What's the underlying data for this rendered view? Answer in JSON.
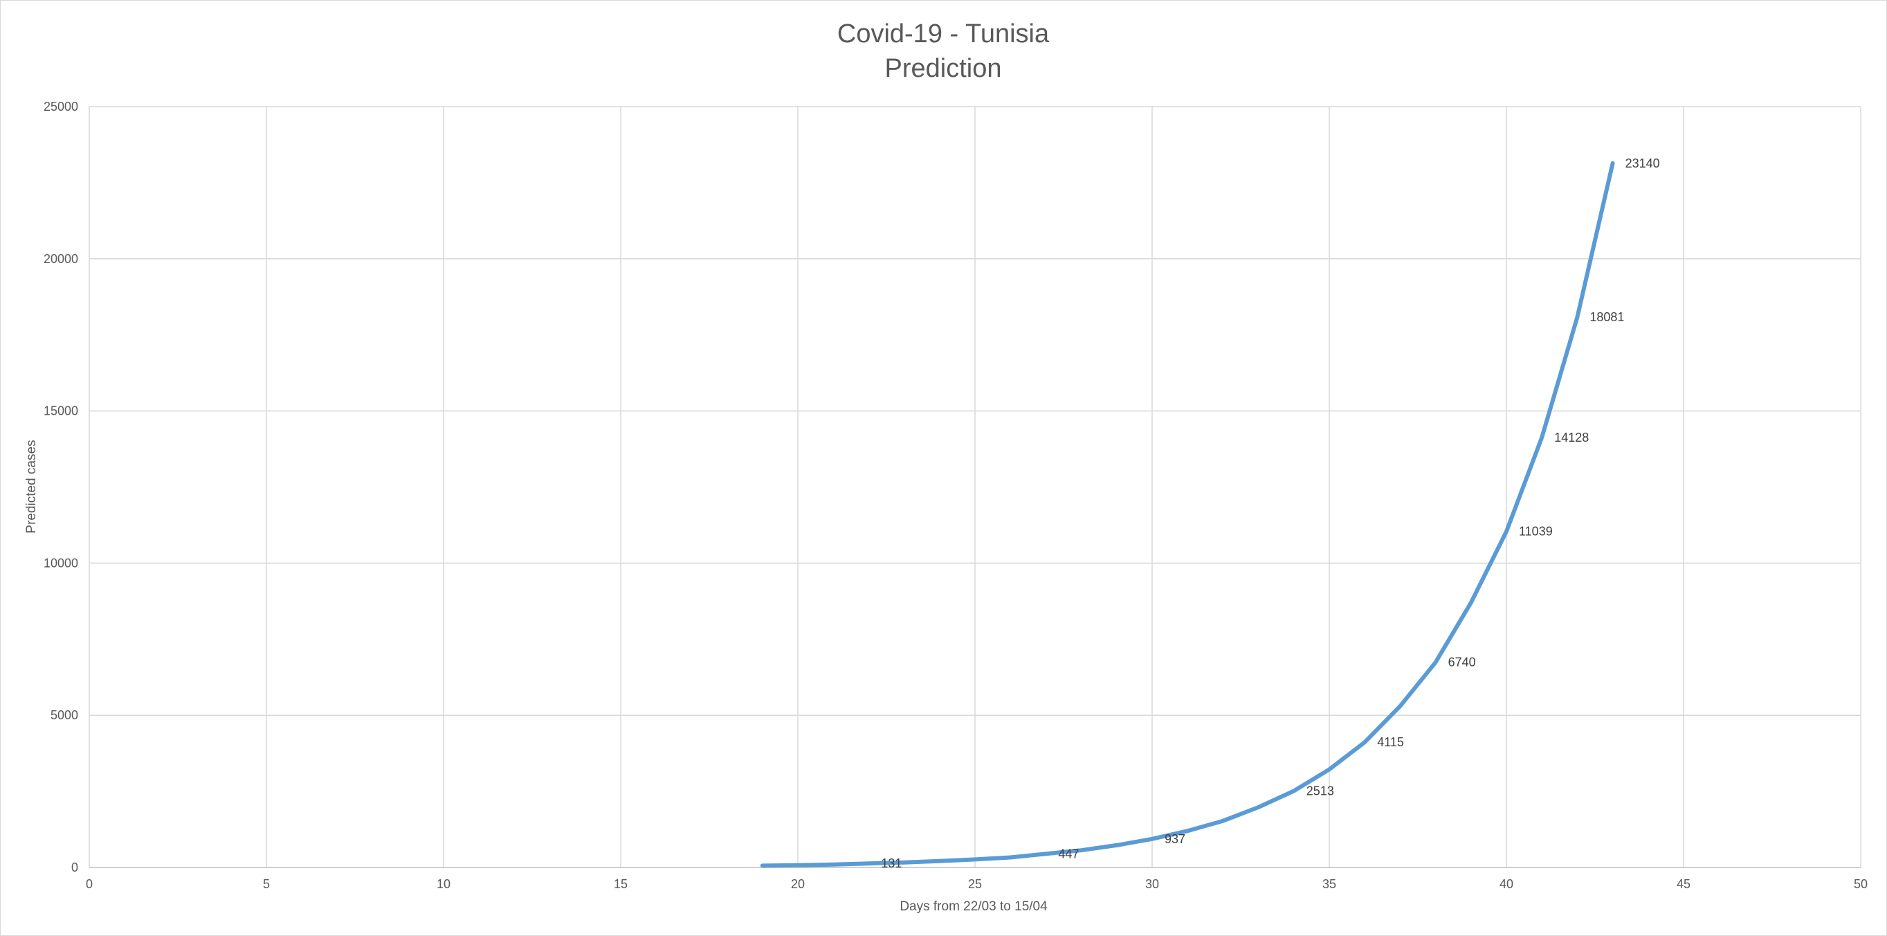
{
  "chart_data": {
    "type": "line",
    "title": "Covid-19 - Tunisia",
    "subtitle": "Prediction",
    "xlabel": "Days from 22/03 to 15/04",
    "ylabel": "Predicted cases",
    "xlim": [
      0,
      50
    ],
    "ylim": [
      0,
      25000
    ],
    "x_ticks": [
      0,
      5,
      10,
      15,
      20,
      25,
      30,
      35,
      40,
      45,
      50
    ],
    "y_ticks": [
      0,
      5000,
      10000,
      15000,
      20000,
      25000
    ],
    "grid": true,
    "legend": "none",
    "series": [
      {
        "color": "#5b9bd5",
        "x": [
          19,
          20,
          21,
          22,
          23,
          24,
          25,
          26,
          27,
          28,
          29,
          30,
          31,
          32,
          33,
          34,
          35,
          36,
          37,
          38,
          39,
          40,
          41,
          42,
          43
        ],
        "y": [
          60,
          75,
          95,
          131,
          165,
          210,
          265,
          330,
          447,
          565,
          730,
          937,
          1200,
          1530,
          1980,
          2513,
          3220,
          4115,
          5300,
          6740,
          8700,
          11039,
          14128,
          18081,
          23140
        ]
      }
    ],
    "data_labels": [
      {
        "x": 22,
        "y": 131,
        "text": "131"
      },
      {
        "x": 27,
        "y": 447,
        "text": "447"
      },
      {
        "x": 30,
        "y": 937,
        "text": "937"
      },
      {
        "x": 34,
        "y": 2513,
        "text": "2513"
      },
      {
        "x": 36,
        "y": 4115,
        "text": "4115"
      },
      {
        "x": 38,
        "y": 6740,
        "text": "6740"
      },
      {
        "x": 40,
        "y": 11039,
        "text": "11039"
      },
      {
        "x": 41,
        "y": 14128,
        "text": "14128"
      },
      {
        "x": 42,
        "y": 18081,
        "text": "18081"
      },
      {
        "x": 43,
        "y": 23140,
        "text": "23140"
      }
    ]
  }
}
